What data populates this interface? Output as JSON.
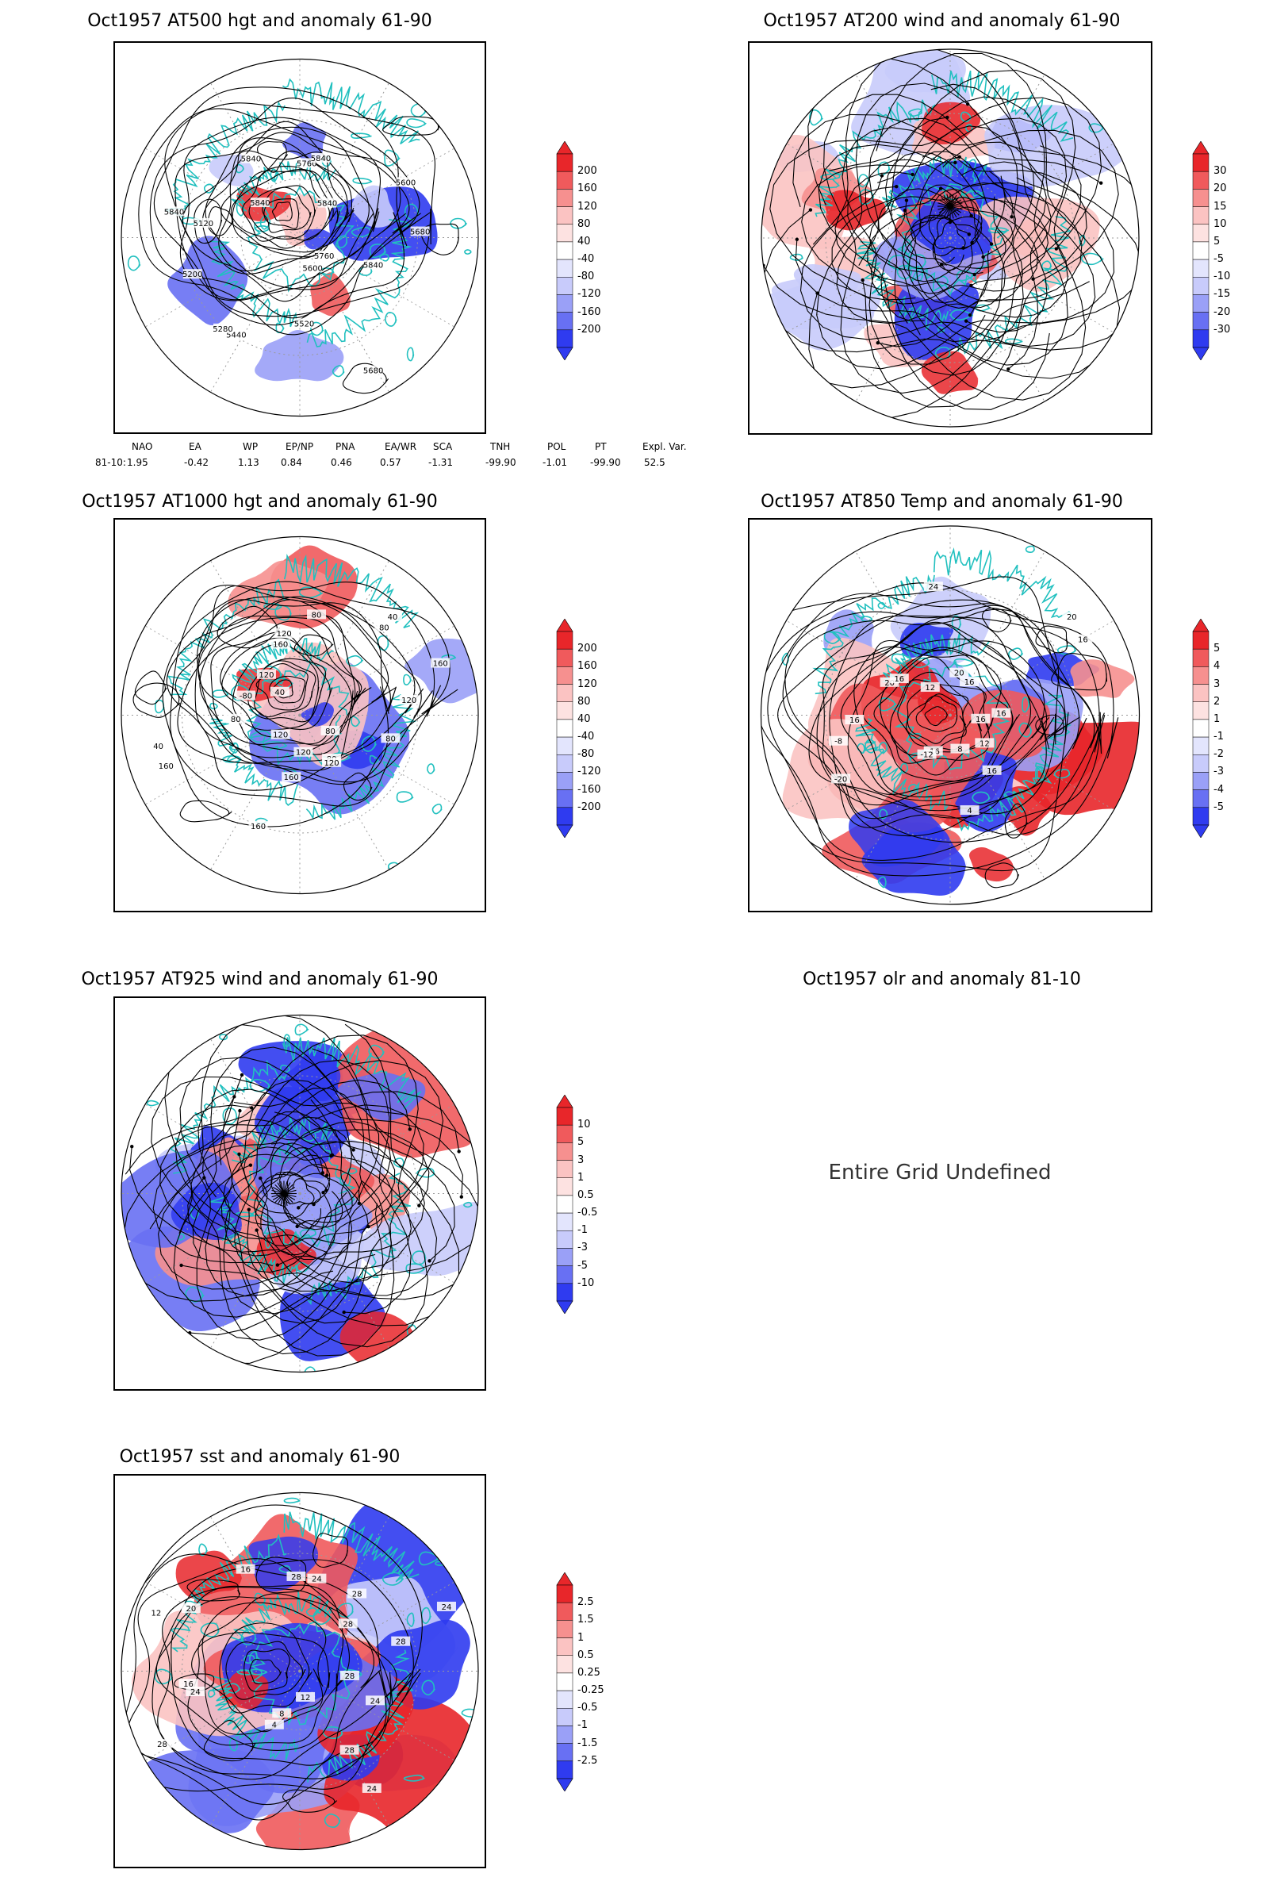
{
  "panels": [
    {
      "id": "p1",
      "title": "Oct1957 AT500 hgt and anomaly 61-90",
      "frame": true,
      "colorbar": {
        "labels": [
          "200",
          "160",
          "120",
          "80",
          "40",
          "-40",
          "-80",
          "-120",
          "-160",
          "-200"
        ]
      },
      "contour_labels": [
        "5840",
        "5760",
        "5680",
        "5600",
        "5520",
        "5440",
        "5280",
        "5200",
        "5120",
        "5840",
        "5840",
        "5840",
        "5760",
        "5840",
        "5840",
        "5600",
        "5680"
      ]
    },
    {
      "id": "p2",
      "title": "Oct1957 AT200 wind and anomaly 61-90",
      "frame": true,
      "colorbar": {
        "labels": [
          "30",
          "20",
          "15",
          "10",
          "5",
          "-5",
          "-10",
          "-15",
          "-20",
          "-30"
        ]
      },
      "contour_labels": []
    },
    {
      "id": "p3",
      "title": "Oct1957 AT1000 hgt and anomaly 61-90",
      "frame": true,
      "colorbar": {
        "labels": [
          "200",
          "160",
          "120",
          "80",
          "40",
          "-40",
          "-80",
          "-120",
          "-160",
          "-200"
        ]
      },
      "contour_labels": [
        "80",
        "80",
        "80",
        "120",
        "120",
        "160",
        "160",
        "120",
        "160",
        "40",
        "80",
        "-80",
        "40",
        "120",
        "160",
        "120",
        "80",
        "40",
        "80",
        "160",
        "120"
      ]
    },
    {
      "id": "p4",
      "title": "Oct1957 AT850 Temp and anomaly 61-90",
      "frame": true,
      "colorbar": {
        "labels": [
          "5",
          "4",
          "3",
          "2",
          "1",
          "-1",
          "-2",
          "-3",
          "-4",
          "-5"
        ]
      },
      "contour_labels": [
        "16",
        "12",
        "16",
        "8",
        "4",
        "-16",
        "-12",
        "-20",
        "-8",
        "16",
        "20",
        "16",
        "12",
        "24",
        "20",
        "16",
        "20",
        "16",
        "16"
      ]
    },
    {
      "id": "p5",
      "title": "Oct1957 AT925 wind and anomaly 61-90",
      "frame": true,
      "colorbar": {
        "labels": [
          "10",
          "5",
          "3",
          "1",
          "0.5",
          "-0.5",
          "-1",
          "-3",
          "-5",
          "-10"
        ]
      },
      "contour_labels": []
    },
    {
      "id": "p6",
      "title": "Oct1957 olr and anomaly 81-10",
      "frame": false,
      "message": "Entire Grid Undefined"
    },
    {
      "id": "p7",
      "title": "Oct1957 sst and anomaly 61-90",
      "frame": true,
      "colorbar": {
        "labels": [
          "2.5",
          "1.5",
          "1",
          "0.5",
          "0.25",
          "-0.25",
          "-0.5",
          "-1",
          "-1.5",
          "-2.5"
        ]
      },
      "contour_labels": [
        "28",
        "24",
        "28",
        "24",
        "12",
        "8",
        "4",
        "28",
        "24",
        "16",
        "12",
        "20",
        "16",
        "28",
        "24",
        "28",
        "28",
        "24",
        "28"
      ]
    }
  ],
  "indices": {
    "headers": [
      "NAO",
      "EA",
      "WP",
      "EP/NP",
      "PNA",
      "EA/WR",
      "SCA",
      "TNH",
      "POL",
      "PT",
      "Expl. Var."
    ],
    "row_label": "81-10:",
    "values": [
      "1.95",
      "-0.42",
      "1.13",
      "0.84",
      "0.46",
      "0.57",
      "-1.31",
      "-99.90",
      "-1.01",
      "-99.90",
      "52.5"
    ]
  },
  "colors": {
    "positive": "#e8262a",
    "negative": "#2f3bf0",
    "coast": "#21c0bf",
    "contour": "#000000"
  }
}
